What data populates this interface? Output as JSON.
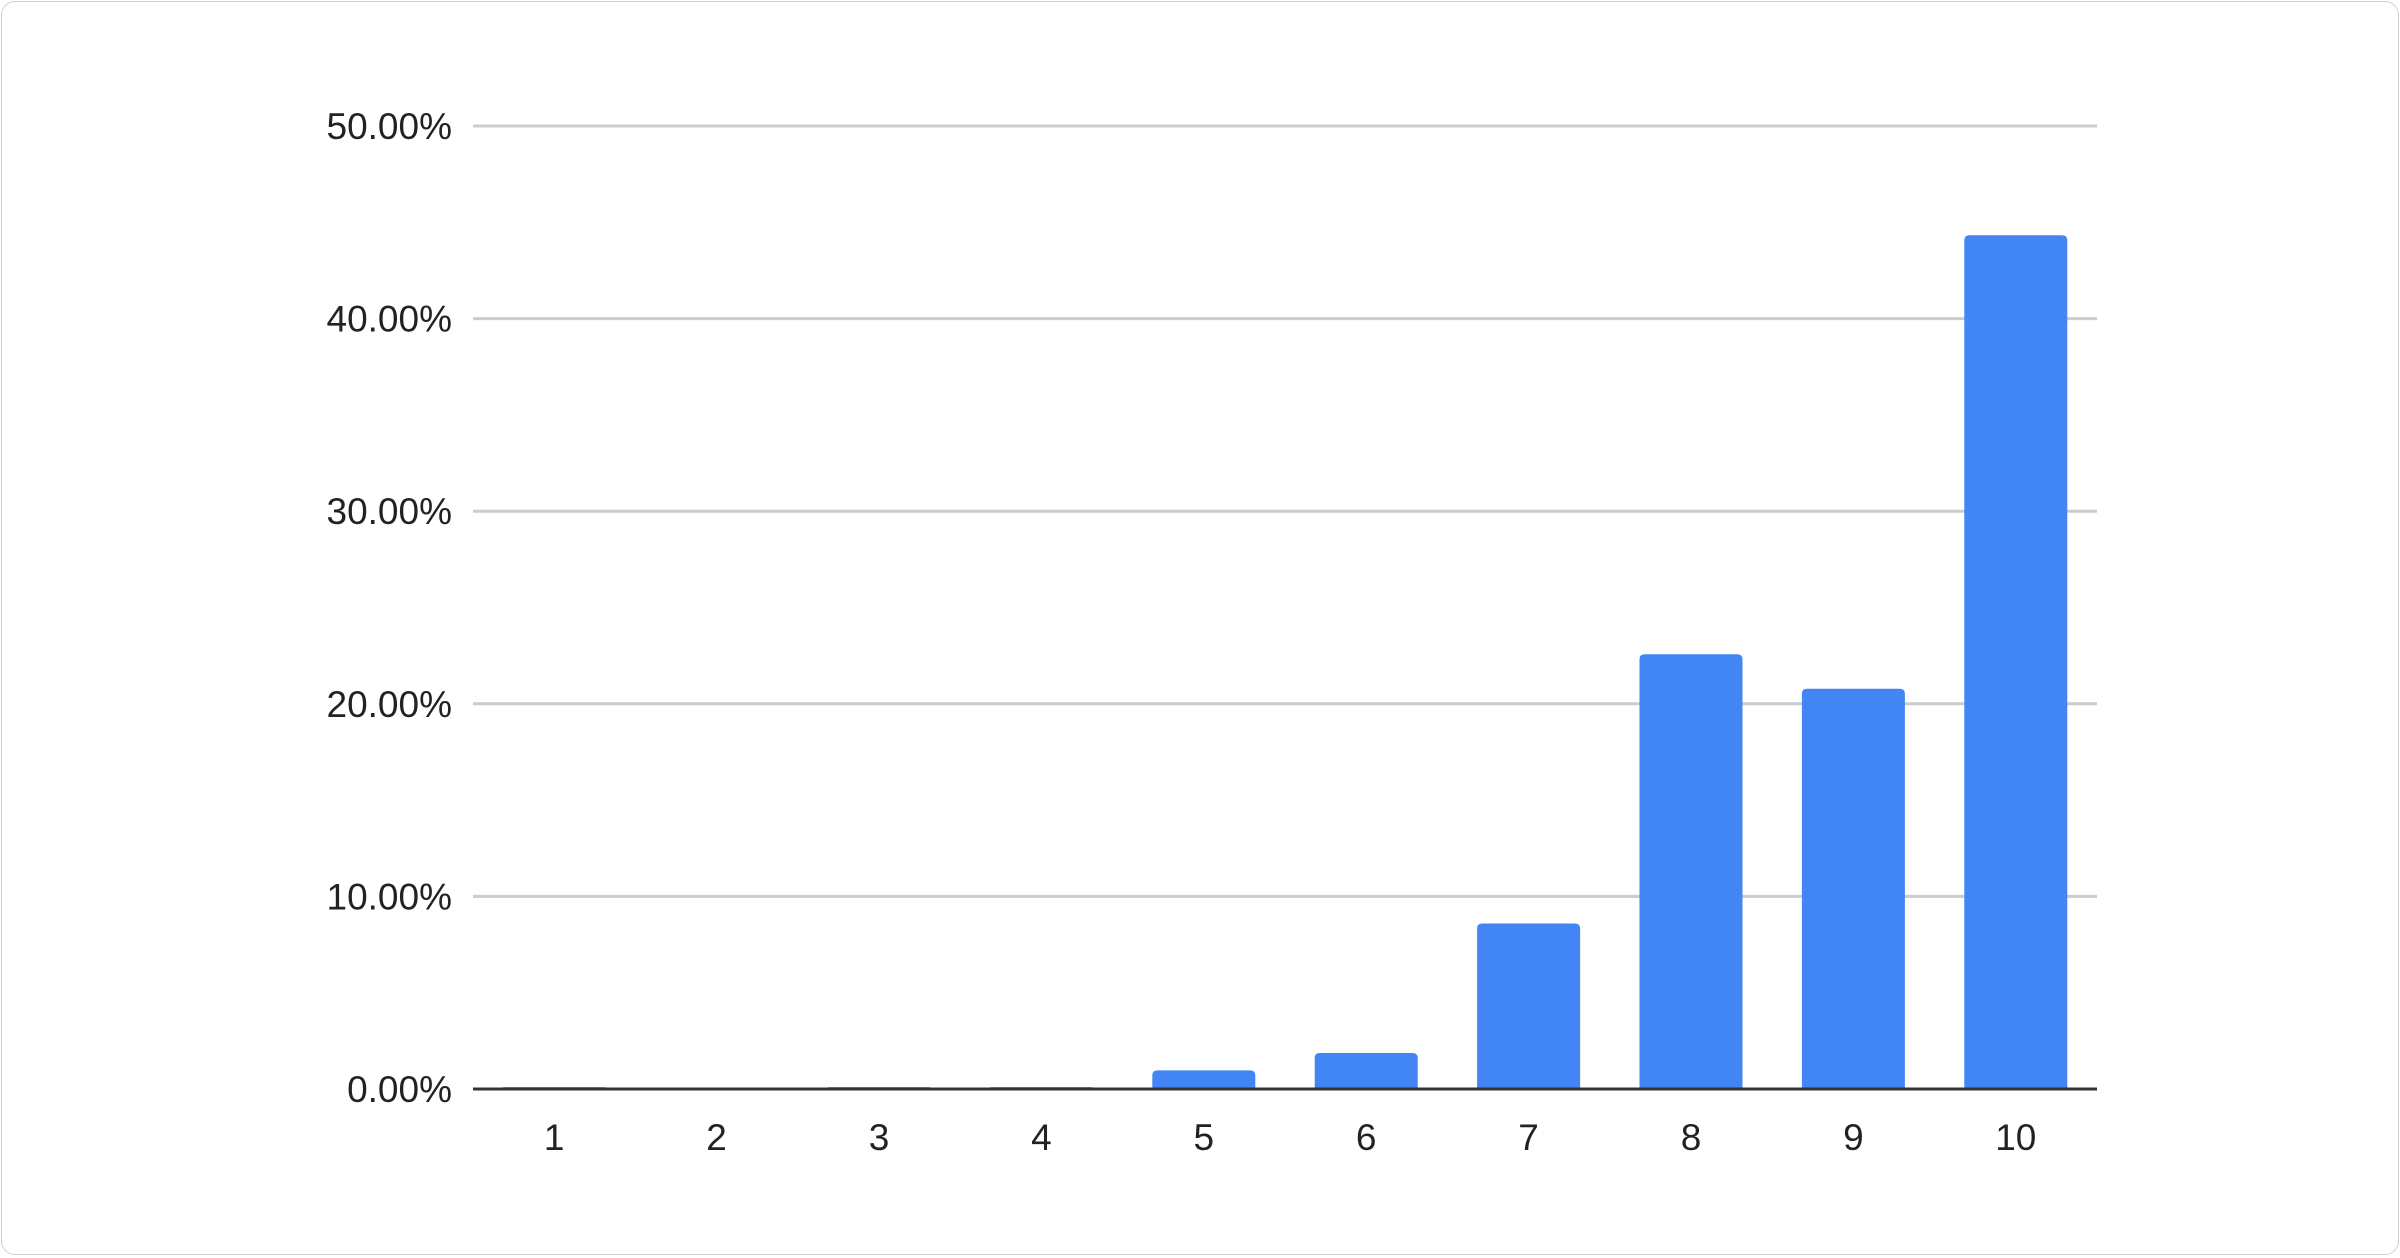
{
  "chart_data": {
    "type": "bar",
    "title": "",
    "xlabel": "",
    "ylabel": "",
    "categories": [
      "1",
      "2",
      "3",
      "4",
      "5",
      "6",
      "7",
      "8",
      "9",
      "10"
    ],
    "values": [
      0.1,
      0,
      0.1,
      0.1,
      0.97,
      1.87,
      8.59,
      22.57,
      20.78,
      44.33
    ],
    "value_unit": "percent",
    "ylim": [
      0,
      50
    ],
    "yticks": [
      0,
      10,
      20,
      30,
      40,
      50
    ],
    "ytick_labels": [
      "0.00%",
      "10.00%",
      "20.00%",
      "30.00%",
      "40.00%",
      "50.00%"
    ],
    "grid": true,
    "legend": "none",
    "bar_color": "#4285f4",
    "grid_color": "#cccccc",
    "axis_color": "#333333"
  }
}
